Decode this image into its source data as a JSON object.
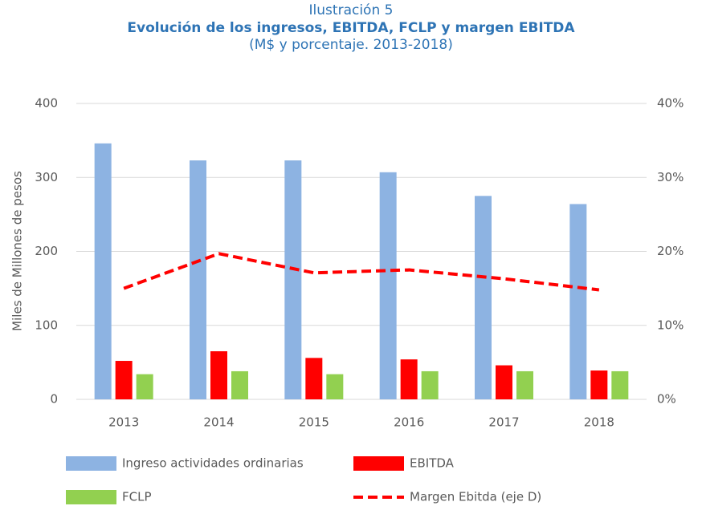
{
  "chart_data": {
    "type": "bar",
    "pretitle": "Ilustración 5",
    "title": "Evolución de los ingresos, EBITDA, FCLP y margen EBITDA",
    "subtitle": "(M$ y porcentaje. 2013-2018)",
    "y_label": "Miles de Millones de pesos",
    "categories": [
      "2013",
      "2014",
      "2015",
      "2016",
      "2017",
      "2018"
    ],
    "series": [
      {
        "name": "Ingreso actividades ordinarias",
        "color": "#8db3e2",
        "type": "bar",
        "values": [
          346,
          323,
          323,
          307,
          275,
          264
        ]
      },
      {
        "name": "EBITDA",
        "color": "#ff0000",
        "type": "bar",
        "values": [
          52,
          65,
          56,
          54,
          46,
          39
        ]
      },
      {
        "name": "FCLP",
        "color": "#92d050",
        "type": "bar",
        "values": [
          34,
          38,
          34,
          38,
          38,
          38
        ]
      },
      {
        "name": "Margen Ebitda (eje D)",
        "color": "#ff0000",
        "type": "line",
        "axis": "y2",
        "values": [
          15,
          19.7,
          17.1,
          17.5,
          16.3,
          14.8
        ]
      }
    ],
    "ylim": [
      0,
      400
    ],
    "yticks": [
      0,
      100,
      200,
      300,
      400
    ],
    "y2lim": [
      0,
      40
    ],
    "y2ticks": [
      {
        "value": 0,
        "label": "0%"
      },
      {
        "value": 10,
        "label": "10%"
      },
      {
        "value": 20,
        "label": "20%"
      },
      {
        "value": 30,
        "label": "30%"
      },
      {
        "value": 40,
        "label": "40%"
      }
    ],
    "grid": true
  }
}
